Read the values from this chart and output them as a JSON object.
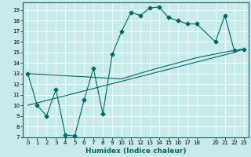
{
  "xlabel": "Humidex (Indice chaleur)",
  "bg_color": "#c8eaea",
  "grid_color": "#ffffff",
  "line_color": "#006666",
  "xlim": [
    -0.5,
    23.5
  ],
  "ylim": [
    7,
    19.7
  ],
  "yticks": [
    7,
    8,
    9,
    10,
    11,
    12,
    13,
    14,
    15,
    16,
    17,
    18,
    19
  ],
  "xticks": [
    0,
    1,
    2,
    3,
    4,
    5,
    6,
    7,
    8,
    9,
    10,
    11,
    12,
    13,
    14,
    15,
    16,
    17,
    18,
    20,
    21,
    22,
    23
  ],
  "line1_x": [
    0,
    1,
    2,
    3,
    4,
    5,
    6,
    7,
    8,
    9,
    10,
    11,
    12,
    13,
    14,
    15,
    16,
    17,
    18,
    20,
    21,
    22,
    23
  ],
  "line1_y": [
    13,
    10,
    9,
    11.5,
    7.2,
    7.1,
    10.5,
    13.5,
    9.2,
    14.8,
    17,
    18.8,
    18.5,
    19.2,
    19.3,
    18.3,
    18,
    17.7,
    17.7,
    16,
    18.5,
    15.2,
    15.3
  ],
  "line2_x": [
    0,
    10,
    13,
    18,
    22,
    23
  ],
  "line2_y": [
    13,
    12.5,
    13.3,
    14.5,
    15.2,
    15.3
  ],
  "line3_x": [
    0,
    22,
    23
  ],
  "line3_y": [
    10,
    15.0,
    15.3
  ],
  "marker": "D",
  "marker_size": 2.5,
  "xlabel_fontsize": 6.5,
  "tick_fontsize": 5.0
}
